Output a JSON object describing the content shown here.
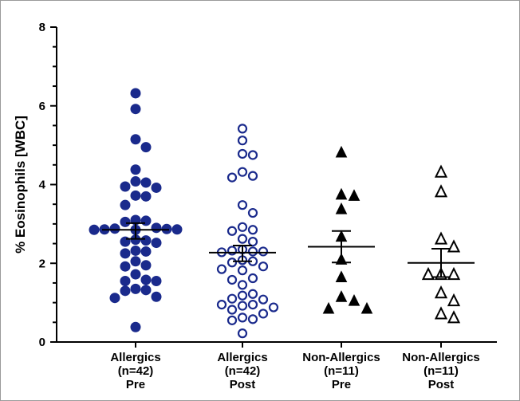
{
  "chart_data": {
    "type": "scatter",
    "ylabel": "% Eosinophils [WBC]",
    "xlabel": "",
    "ylim": [
      0,
      8
    ],
    "yticks": [
      "0",
      "2",
      "4",
      "6",
      "8"
    ],
    "grid": false,
    "categories": [
      {
        "lines": [
          "Allergics",
          "(n=42)",
          "Pre"
        ]
      },
      {
        "lines": [
          "Allergics",
          "(n=42)",
          "Post"
        ]
      },
      {
        "lines": [
          "Non-Allergics",
          "(n=11)",
          "Pre"
        ]
      },
      {
        "lines": [
          "Non-Allergics",
          "(n=11)",
          "Post"
        ]
      }
    ],
    "series": [
      {
        "marker": "circle-filled",
        "color": "#1a2a8c",
        "mean": 2.85,
        "sem": [
          2.62,
          3.02
        ],
        "values": [
          6.32,
          5.92,
          5.15,
          4.95,
          4.38,
          4.08,
          4.05,
          3.95,
          3.92,
          3.72,
          3.7,
          3.48,
          3.1,
          3.08,
          3.05,
          2.9,
          2.88,
          2.87,
          2.86,
          2.86,
          2.85,
          2.85,
          2.6,
          2.58,
          2.55,
          2.52,
          2.32,
          2.3,
          2.25,
          2.05,
          1.95,
          1.92,
          1.72,
          1.58,
          1.55,
          1.55,
          1.35,
          1.32,
          1.3,
          1.15,
          1.12,
          0.38
        ]
      },
      {
        "marker": "circle-open",
        "color": "#1a2a8c",
        "mean": 2.27,
        "sem": [
          2.05,
          2.45
        ],
        "values": [
          5.42,
          5.12,
          4.78,
          4.75,
          4.32,
          4.22,
          4.18,
          3.48,
          3.28,
          2.92,
          2.85,
          2.82,
          2.62,
          2.55,
          2.35,
          2.32,
          2.3,
          2.3,
          2.28,
          2.08,
          2.05,
          2.02,
          1.92,
          1.85,
          1.82,
          1.62,
          1.58,
          1.45,
          1.22,
          1.18,
          1.1,
          1.08,
          0.95,
          0.95,
          0.92,
          0.88,
          0.82,
          0.72,
          0.62,
          0.58,
          0.55,
          0.22
        ]
      },
      {
        "marker": "triangle-filled",
        "color": "#000000",
        "mean": 2.42,
        "sem": [
          2.02,
          2.82
        ],
        "values": [
          4.82,
          3.75,
          3.72,
          3.38,
          2.68,
          2.1,
          1.65,
          1.15,
          1.05,
          0.85,
          0.85
        ]
      },
      {
        "marker": "triangle-open",
        "color": "#000000",
        "mean": 2.01,
        "sem": [
          1.65,
          2.37
        ],
        "values": [
          4.32,
          3.82,
          2.62,
          2.42,
          1.72,
          1.72,
          1.72,
          1.25,
          1.05,
          0.72,
          0.62
        ]
      }
    ]
  }
}
